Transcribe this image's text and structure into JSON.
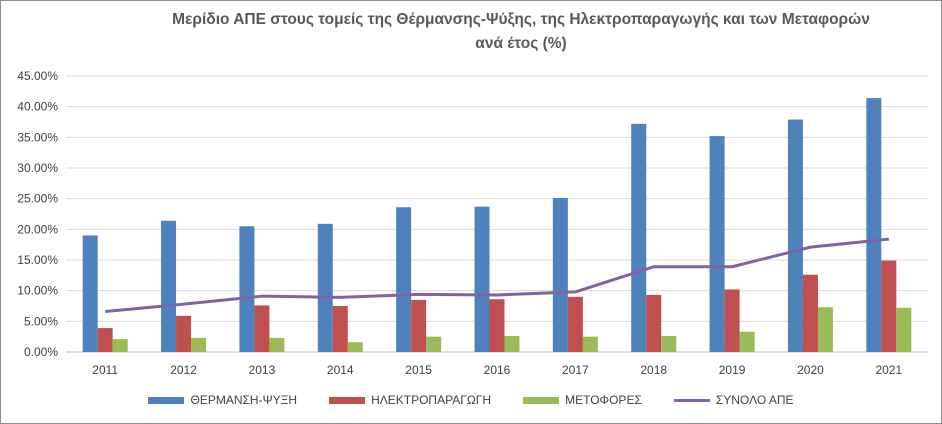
{
  "chart_data": {
    "type": "bar",
    "title_line1": "Μερίδιο ΑΠΕ στους τομείς της Θέρμανσης-Ψύξης, της Ηλεκτροπαραγωγής και των Μεταφορών",
    "title_line2": "ανά έτος (%)",
    "categories": [
      "2011",
      "2012",
      "2013",
      "2014",
      "2015",
      "2016",
      "2017",
      "2018",
      "2019",
      "2020",
      "2021"
    ],
    "ylim": [
      0,
      45
    ],
    "yticks": [
      "0.00%",
      "5.00%",
      "10.00%",
      "15.00%",
      "20.00%",
      "25.00%",
      "30.00%",
      "35.00%",
      "40.00%",
      "45.00%"
    ],
    "grid": true,
    "legend_position": "bottom",
    "series": [
      {
        "name": "ΘΕΡΜΑΝΣΗ-ΨΥΞΗ",
        "kind": "bar",
        "color": "#4f81bd",
        "values": [
          19.0,
          21.4,
          20.5,
          20.9,
          23.6,
          23.7,
          25.1,
          37.2,
          35.2,
          37.9,
          41.4
        ]
      },
      {
        "name": "ΗΛΕΚΤΡΟΠΑΡΑΓΩΓΗ",
        "kind": "bar",
        "color": "#c0504d",
        "values": [
          3.9,
          5.9,
          7.6,
          7.5,
          8.5,
          8.6,
          9.0,
          9.3,
          10.2,
          12.6,
          14.9
        ]
      },
      {
        "name": "ΜΕΤΟΦΟΡΕΣ",
        "kind": "bar",
        "color": "#9bbb59",
        "values": [
          2.1,
          2.3,
          2.3,
          1.6,
          2.5,
          2.6,
          2.5,
          2.6,
          3.3,
          7.3,
          7.2
        ]
      },
      {
        "name": "ΣΥΝΟΛΟ ΑΠΕ",
        "kind": "line",
        "color": "#8064a2",
        "values": [
          6.6,
          7.8,
          9.1,
          8.9,
          9.4,
          9.3,
          9.8,
          13.9,
          13.9,
          17.1,
          18.4
        ]
      }
    ]
  }
}
